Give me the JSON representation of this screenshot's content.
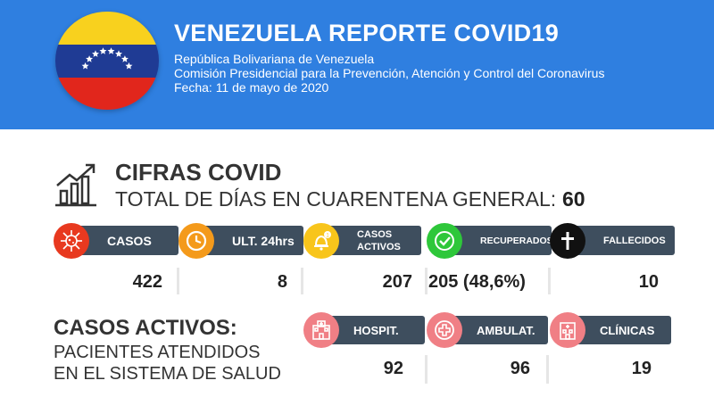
{
  "header": {
    "title": "VENEZUELA REPORTE COVID19",
    "line1": "República Bolivariana de Venezuela",
    "line2": "Comisión Presidencial para la Prevención, Atención y Control del Coronavirus",
    "line3": "Fecha:  11 de mayo de 2020",
    "background_color": "#2f7fe0",
    "flag_colors": [
      "#f8d11e",
      "#1f3b94",
      "#e1261c"
    ]
  },
  "cifras": {
    "title": "CIFRAS COVID",
    "quarantine_label": "TOTAL DE DÍAS EN CUARENTENA GENERAL:",
    "quarantine_days": "60",
    "icon": "bar-chart-growth-icon"
  },
  "stats": [
    {
      "label": "CASOS",
      "value": "422",
      "icon": "virus-icon",
      "color": "#e8391f"
    },
    {
      "label": "ULT. 24hrs",
      "value": "8",
      "icon": "clock-icon",
      "color": "#f49a1b"
    },
    {
      "label_line1": "CASOS",
      "label_line2": "ACTIVOS",
      "value": "207",
      "icon": "bell-icon",
      "color": "#f8c51b"
    },
    {
      "label": "RECUPERADOS",
      "value": "205 (48,6%)",
      "icon": "check-circle-icon",
      "color": "#2ec73a"
    },
    {
      "label": "FALLECIDOS",
      "value": "10",
      "icon": "cross-icon",
      "color": "#111111"
    }
  ],
  "casos_activos": {
    "title": "CASOS ACTIVOS:",
    "line1": "PACIENTES ATENDIDOS",
    "line2": "EN EL SISTEMA DE SALUD",
    "items": [
      {
        "label": "HOSPIT.",
        "value": "92",
        "icon": "hospital-icon"
      },
      {
        "label": "AMBULAT.",
        "value": "96",
        "icon": "medical-cross-icon"
      },
      {
        "label": "CLÍNICAS",
        "value": "19",
        "icon": "clinic-building-icon"
      }
    ],
    "icon_color": "#f07f85"
  },
  "label_bg_color": "#3e4e5e"
}
